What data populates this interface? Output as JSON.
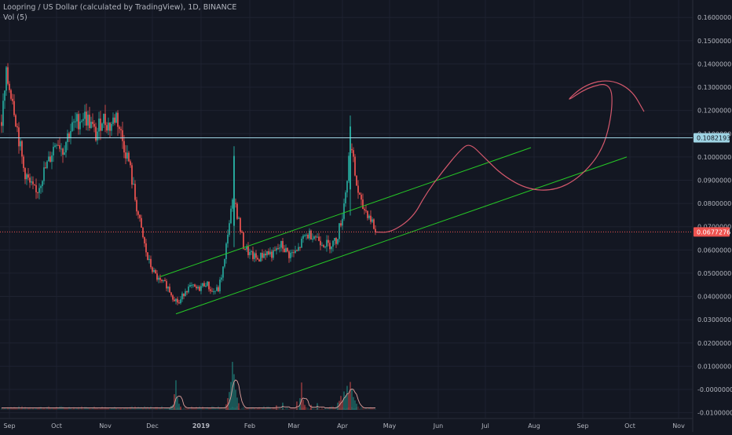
{
  "header": {
    "title": "Loopring / US Dollar (calculated by TradingView), 1D, BINANCE",
    "volume_label": "Vol (5)"
  },
  "chart_data": {
    "type": "candlestick",
    "symbol": "Loopring / US Dollar",
    "interval": "1D",
    "exchange": "BINANCE",
    "grid": true,
    "y_axis": {
      "position": "right",
      "ylim": [
        -0.0125,
        0.1675
      ],
      "tick_labels": [
        "0.1600000",
        "0.1500000",
        "0.1400000",
        "0.1300000",
        "0.1200000",
        "0.1100000",
        "0.1000000",
        "0.0900000",
        "0.0800000",
        "0.0700000",
        "0.0600000",
        "0.0500000",
        "0.0400000",
        "0.0300000",
        "0.0200000",
        "0.0100000",
        "-0.0000000",
        "-0.0100000"
      ],
      "tick_values": [
        0.16,
        0.15,
        0.14,
        0.13,
        0.12,
        0.11,
        0.1,
        0.09,
        0.08,
        0.07,
        0.06,
        0.05,
        0.04,
        0.03,
        0.02,
        0.01,
        0.0,
        -0.01
      ]
    },
    "x_axis": {
      "start_date": "2018-08-26",
      "end_date": "2019-11-10",
      "tick_labels": [
        "Sep",
        "Oct",
        "Nov",
        "Dec",
        "2019",
        "Feb",
        "Mar",
        "Apr",
        "May",
        "Jun",
        "Jul",
        "Aug",
        "Sep",
        "Oct",
        "Nov"
      ],
      "tick_dates": [
        "2018-09-01",
        "2018-10-01",
        "2018-11-01",
        "2018-12-01",
        "2019-01-01",
        "2019-02-01",
        "2019-03-01",
        "2019-04-01",
        "2019-05-01",
        "2019-06-01",
        "2019-07-01",
        "2019-08-01",
        "2019-09-01",
        "2019-10-01",
        "2019-11-01"
      ]
    },
    "price_path": [
      [
        "2018-08-27",
        0.115
      ],
      [
        "2018-08-30",
        0.134
      ],
      [
        "2018-09-03",
        0.126
      ],
      [
        "2018-09-06",
        0.112
      ],
      [
        "2018-09-10",
        0.095
      ],
      [
        "2018-09-14",
        0.088
      ],
      [
        "2018-09-18",
        0.084
      ],
      [
        "2018-09-22",
        0.092
      ],
      [
        "2018-09-26",
        0.098
      ],
      [
        "2018-10-01",
        0.108
      ],
      [
        "2018-10-05",
        0.103
      ],
      [
        "2018-10-09",
        0.111
      ],
      [
        "2018-10-14",
        0.115
      ],
      [
        "2018-10-18",
        0.118
      ],
      [
        "2018-10-22",
        0.115
      ],
      [
        "2018-10-26",
        0.109
      ],
      [
        "2018-10-30",
        0.117
      ],
      [
        "2018-11-04",
        0.113
      ],
      [
        "2018-11-08",
        0.118
      ],
      [
        "2018-11-12",
        0.107
      ],
      [
        "2018-11-16",
        0.098
      ],
      [
        "2018-11-20",
        0.082
      ],
      [
        "2018-11-24",
        0.068
      ],
      [
        "2018-11-28",
        0.056
      ],
      [
        "2018-12-02",
        0.05
      ],
      [
        "2018-12-06",
        0.046
      ],
      [
        "2018-12-10",
        0.045
      ],
      [
        "2018-12-14",
        0.04
      ],
      [
        "2018-12-18",
        0.037
      ],
      [
        "2018-12-22",
        0.043
      ],
      [
        "2018-12-26",
        0.044
      ],
      [
        "2018-12-30",
        0.043
      ],
      [
        "2019-01-04",
        0.046
      ],
      [
        "2019-01-08",
        0.042
      ],
      [
        "2019-01-12",
        0.043
      ],
      [
        "2019-01-16",
        0.055
      ],
      [
        "2019-01-18",
        0.068
      ],
      [
        "2019-01-20",
        0.076
      ],
      [
        "2019-01-22",
        0.083
      ],
      [
        "2019-01-25",
        0.072
      ],
      [
        "2019-01-28",
        0.062
      ],
      [
        "2019-02-01",
        0.058
      ],
      [
        "2019-02-06",
        0.056
      ],
      [
        "2019-02-11",
        0.059
      ],
      [
        "2019-02-16",
        0.058
      ],
      [
        "2019-02-21",
        0.062
      ],
      [
        "2019-02-26",
        0.058
      ],
      [
        "2019-03-03",
        0.059
      ],
      [
        "2019-03-08",
        0.066
      ],
      [
        "2019-03-13",
        0.067
      ],
      [
        "2019-03-18",
        0.064
      ],
      [
        "2019-03-23",
        0.062
      ],
      [
        "2019-03-28",
        0.064
      ],
      [
        "2019-04-01",
        0.075
      ],
      [
        "2019-04-04",
        0.091
      ],
      [
        "2019-04-06",
        0.107
      ],
      [
        "2019-04-08",
        0.097
      ],
      [
        "2019-04-10",
        0.088
      ],
      [
        "2019-04-13",
        0.079
      ],
      [
        "2019-04-17",
        0.076
      ],
      [
        "2019-04-20",
        0.072
      ],
      [
        "2019-04-22",
        0.0677
      ]
    ],
    "spikes": [
      {
        "date": "2019-01-22",
        "high": 0.1046,
        "low": 0.0612
      },
      {
        "date": "2019-04-06",
        "high": 0.1178,
        "low": 0.0748
      }
    ],
    "volume_scale_max": 9,
    "volume_bars": [
      [
        "2018-12-12",
        0.4
      ],
      [
        "2018-12-13",
        0.7
      ],
      [
        "2018-12-14",
        0.9
      ],
      [
        "2018-12-15",
        2.8
      ],
      [
        "2018-12-16",
        5.3
      ],
      [
        "2018-12-17",
        2.2
      ],
      [
        "2018-12-18",
        1.1
      ],
      [
        "2018-12-19",
        0.6
      ],
      [
        "2019-01-17",
        1.0
      ],
      [
        "2019-01-18",
        2.1
      ],
      [
        "2019-01-19",
        3.2
      ],
      [
        "2019-01-20",
        5.0
      ],
      [
        "2019-01-21",
        8.6
      ],
      [
        "2019-01-22",
        6.4
      ],
      [
        "2019-01-23",
        3.6
      ],
      [
        "2019-01-24",
        2.2
      ],
      [
        "2019-01-25",
        1.2
      ],
      [
        "2019-02-18",
        0.8
      ],
      [
        "2019-02-22",
        1.3
      ],
      [
        "2019-03-03",
        1.5
      ],
      [
        "2019-03-05",
        2.1
      ],
      [
        "2019-03-06",
        4.9
      ],
      [
        "2019-03-07",
        1.8
      ],
      [
        "2019-03-08",
        0.9
      ],
      [
        "2019-03-12",
        0.9
      ],
      [
        "2019-03-16",
        1.2
      ],
      [
        "2019-03-29",
        1.3
      ],
      [
        "2019-03-30",
        1.6
      ],
      [
        "2019-03-31",
        2.5
      ],
      [
        "2019-04-01",
        1.7
      ],
      [
        "2019-04-02",
        3.3
      ],
      [
        "2019-04-03",
        2.6
      ],
      [
        "2019-04-04",
        4.3
      ],
      [
        "2019-04-05",
        2.9
      ],
      [
        "2019-04-06",
        5.0
      ],
      [
        "2019-04-07",
        3.8
      ],
      [
        "2019-04-08",
        2.3
      ],
      [
        "2019-04-09",
        1.7
      ],
      [
        "2019-04-10",
        1.1
      ]
    ],
    "horizontal_lines": [
      {
        "label": "0.1082193",
        "value": 0.1082193,
        "style": "solid",
        "color": "#9fd4e4",
        "label_bg": "#9fd4e4",
        "label_color": "#131722"
      },
      {
        "label": "0.0677276",
        "value": 0.0677276,
        "style": "dotted",
        "color": "#ef5350",
        "label_bg": "#ef5350",
        "label_color": "#ffffff"
      }
    ],
    "channel_lines": [
      {
        "color": "#26c826",
        "points": [
          [
            "2018-12-06",
            0.0485
          ],
          [
            "2019-07-30",
            0.104
          ]
        ]
      },
      {
        "color": "#26c826",
        "points": [
          [
            "2018-12-16",
            0.0325
          ],
          [
            "2019-09-29",
            0.1
          ]
        ]
      }
    ],
    "projection_path": {
      "color": "#d4586c",
      "points": [
        [
          "2019-04-22",
          0.0677
        ],
        [
          "2019-05-02",
          0.0675
        ],
        [
          "2019-05-16",
          0.074
        ],
        [
          "2019-05-24",
          0.084
        ],
        [
          "2019-06-04",
          0.094
        ],
        [
          "2019-06-15",
          0.103
        ],
        [
          "2019-06-21",
          0.106
        ],
        [
          "2019-06-30",
          0.1
        ],
        [
          "2019-07-12",
          0.092
        ],
        [
          "2019-07-28",
          0.086
        ],
        [
          "2019-08-14",
          0.0855
        ],
        [
          "2019-08-30",
          0.091
        ],
        [
          "2019-09-14",
          0.103
        ],
        [
          "2019-09-20",
          0.12
        ],
        [
          "2019-09-19",
          0.132
        ],
        [
          "2019-09-04",
          0.13
        ],
        [
          "2019-08-20",
          0.123
        ],
        [
          "2019-09-02",
          0.131
        ],
        [
          "2019-09-18",
          0.1335
        ],
        [
          "2019-10-02",
          0.129
        ],
        [
          "2019-10-10",
          0.1195
        ]
      ]
    },
    "colors": {
      "background": "#131722",
      "grid": "#1e2230",
      "up": "#26a69a",
      "down": "#ef5350",
      "axis_text": "#b2b5be",
      "volume_ma": "#e0a09d"
    }
  }
}
